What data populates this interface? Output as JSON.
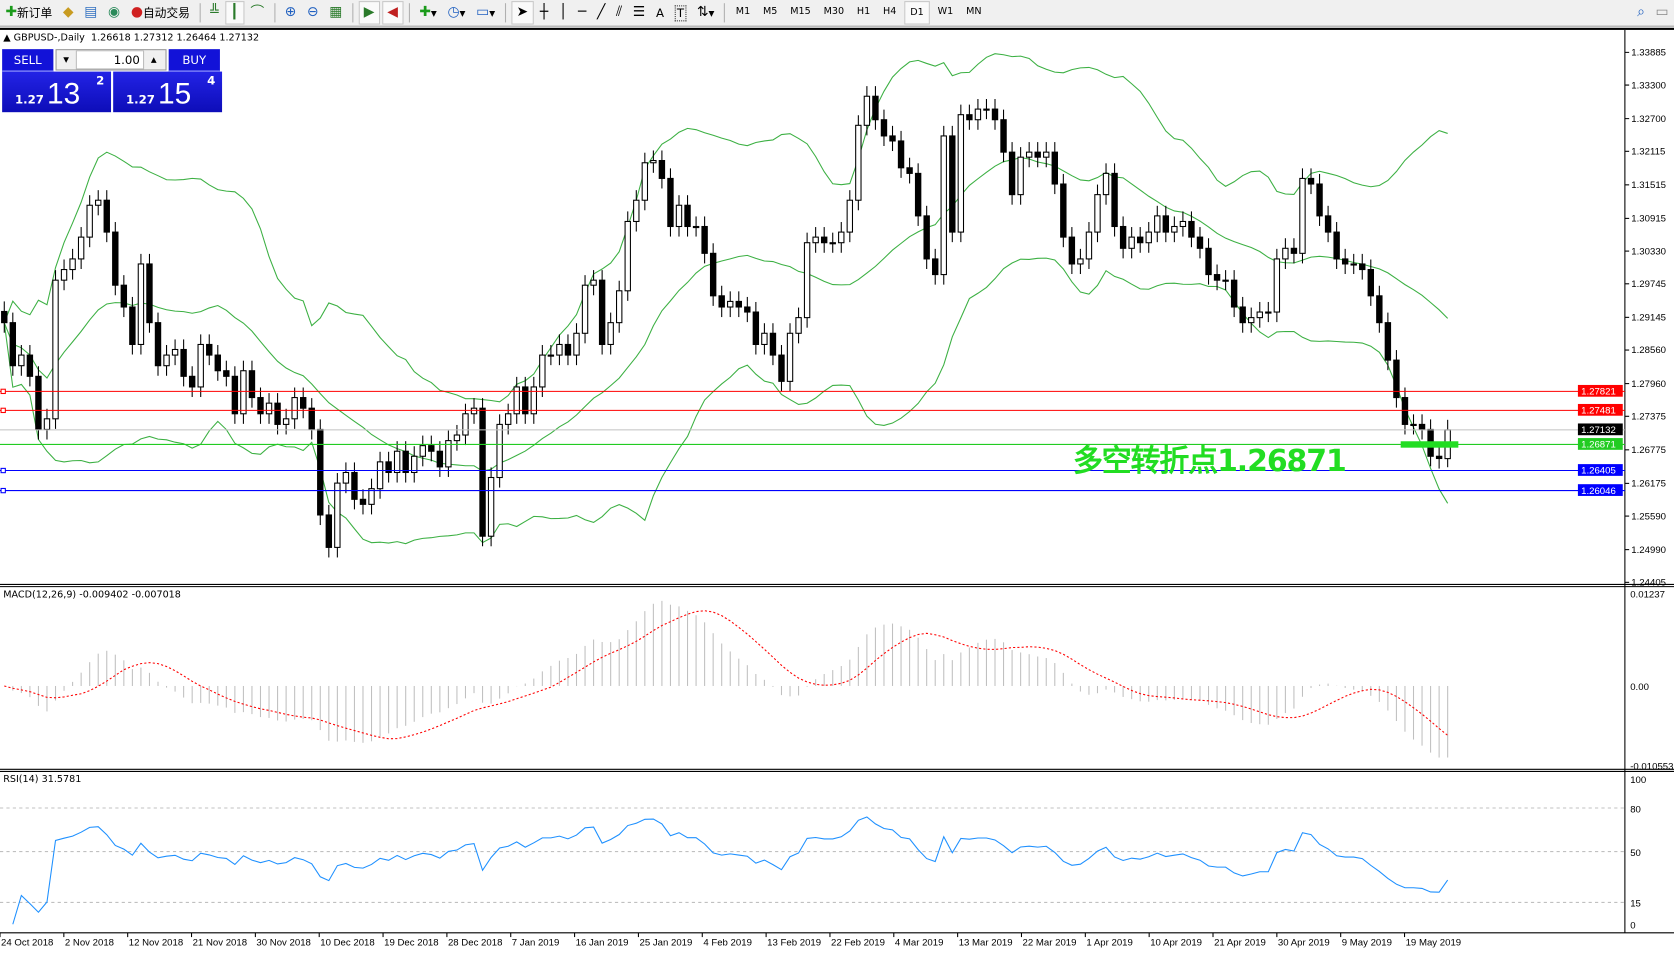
{
  "toolbar": {
    "new_order": "新订单",
    "auto_trading": "自动交易",
    "timeframes": [
      "M1",
      "M5",
      "M15",
      "M30",
      "H1",
      "H4",
      "D1",
      "W1",
      "MN"
    ],
    "active_timeframe": "D1",
    "text_tool": "A",
    "label_tool": "T"
  },
  "chart_header": {
    "symbol": "GBPUSD-,Daily",
    "ohlc": "1.26618 1.27312 1.26464 1.27132"
  },
  "trade_panel": {
    "sell_label": "SELL",
    "buy_label": "BUY",
    "lot": "1.00",
    "sell_prefix": "1.27",
    "sell_big": "13",
    "sell_pip": "2",
    "buy_prefix": "1.27",
    "buy_big": "15",
    "buy_pip": "4"
  },
  "annotation": "多空转折点1.26871",
  "colors": {
    "bollinger": "#3cb043",
    "macd_hist": "#c0c0c0",
    "macd_signal": "#ff0000",
    "rsi": "#1e90ff",
    "resistance": "#ff0000",
    "support": "#0000ff",
    "pivot": "#22cc22"
  },
  "chart_data": [
    {
      "type": "candlestick",
      "symbol": "GBPUSD",
      "timeframe": "Daily",
      "ylim": [
        1.24405,
        1.33885
      ],
      "price_ticks": [
        "1.33885",
        "1.33300",
        "1.32700",
        "1.32115",
        "1.31515",
        "1.30915",
        "1.30330",
        "1.29745",
        "1.29145",
        "1.28560",
        "1.27960",
        "1.27375",
        "1.26775",
        "1.26175",
        "1.25590",
        "1.24990",
        "1.24405"
      ],
      "date_ticks": [
        "24 Oct 2018",
        "2 Nov 2018",
        "12 Nov 2018",
        "21 Nov 2018",
        "30 Nov 2018",
        "10 Dec 2018",
        "19 Dec 2018",
        "28 Dec 2018",
        "7 Jan 2019",
        "16 Jan 2019",
        "25 Jan 2019",
        "4 Feb 2019",
        "13 Feb 2019",
        "22 Feb 2019",
        "4 Mar 2019",
        "13 Mar 2019",
        "22 Mar 2019",
        "1 Apr 2019",
        "10 Apr 2019",
        "21 Apr 2019",
        "30 Apr 2019",
        "9 May 2019",
        "19 May 2019"
      ],
      "closes": [
        1.2905,
        1.2828,
        1.2847,
        1.2809,
        1.2714,
        1.2733,
        1.2981,
        1.3,
        1.3019,
        1.3058,
        1.3115,
        1.3124,
        1.3067,
        1.2972,
        1.2933,
        1.2866,
        1.301,
        1.2905,
        1.2828,
        1.2847,
        1.2857,
        1.2809,
        1.279,
        1.2866,
        1.2847,
        1.2819,
        1.2809,
        1.2742,
        1.2819,
        1.2771,
        1.2742,
        1.2761,
        1.2723,
        1.2733,
        1.2771,
        1.2752,
        1.2714,
        1.2561,
        1.2503,
        1.2618,
        1.2637,
        1.2589,
        1.258,
        1.2608,
        1.2656,
        1.2637,
        1.2675,
        1.2637,
        1.2666,
        1.2685,
        1.2675,
        1.2647,
        1.2694,
        1.2704,
        1.2742,
        1.2752,
        1.2523,
        1.2628,
        1.2723,
        1.2742,
        1.279,
        1.2742,
        1.279,
        1.2847,
        1.2847,
        1.2866,
        1.2847,
        1.2886,
        1.2972,
        1.2981,
        1.2866,
        1.2905,
        1.2962,
        1.3086,
        1.3124,
        1.3191,
        1.3195,
        1.3163,
        1.3077,
        1.3115,
        1.3077,
        1.3077,
        1.3029,
        1.2953,
        1.2933,
        1.2943,
        1.2933,
        1.2924,
        1.2866,
        1.2886,
        1.2847,
        1.28,
        1.2886,
        1.2914,
        1.3048,
        1.3058,
        1.3048,
        1.3048,
        1.3067,
        1.3124,
        1.3258,
        1.331,
        1.3268,
        1.3239,
        1.323,
        1.3182,
        1.3172,
        1.3096,
        1.3019,
        1.2991,
        1.3239,
        1.3067,
        1.3277,
        1.3268,
        1.3287,
        1.3287,
        1.3268,
        1.321,
        1.3134,
        1.3201,
        1.321,
        1.3201,
        1.321,
        1.3153,
        1.3058,
        1.301,
        1.3019,
        1.3067,
        1.3134,
        1.3172,
        1.3077,
        1.3038,
        1.3058,
        1.3048,
        1.3067,
        1.3096,
        1.3067,
        1.3077,
        1.3086,
        1.3058,
        1.3038,
        1.2991,
        1.2981,
        1.2981,
        1.2933,
        1.2905,
        1.2914,
        1.2924,
        1.2924,
        1.3019,
        1.3038,
        1.3029,
        1.3163,
        1.3153,
        1.3096,
        1.3067,
        1.3019,
        1.301,
        1.301,
        1.3,
        1.2953,
        1.2905,
        1.2838,
        1.2771,
        1.2723,
        1.2723,
        1.2714,
        1.2666,
        1.2662,
        1.27132
      ],
      "last_candle": {
        "open": 1.26618,
        "high": 1.27312,
        "low": 1.26464,
        "close": 1.27132
      },
      "indicator": "Bollinger Bands (20, 2)",
      "horizontal_lines": [
        {
          "price": "1.27821",
          "color": "#ff0000"
        },
        {
          "price": "1.27481",
          "color": "#ff0000"
        },
        {
          "price": "1.27132",
          "color": "#000000",
          "kind": "bid"
        },
        {
          "price": "1.26871",
          "color": "#22cc22"
        },
        {
          "price": "1.26405",
          "color": "#0000ff"
        },
        {
          "price": "1.26046",
          "color": "#0000ff"
        }
      ]
    },
    {
      "type": "bar",
      "title": "MACD(12,26,9) -0.009402 -0.007018",
      "ylim": [
        -0.010553,
        0.01237
      ],
      "ticks": [
        "0.01237",
        "0.00",
        "-0.010553"
      ]
    },
    {
      "type": "line",
      "title": "RSI(14) 31.5781",
      "ylim": [
        0,
        100
      ],
      "ticks": [
        "100",
        "80",
        "50",
        "15",
        "0"
      ],
      "levels": [
        80,
        50,
        15
      ]
    }
  ]
}
